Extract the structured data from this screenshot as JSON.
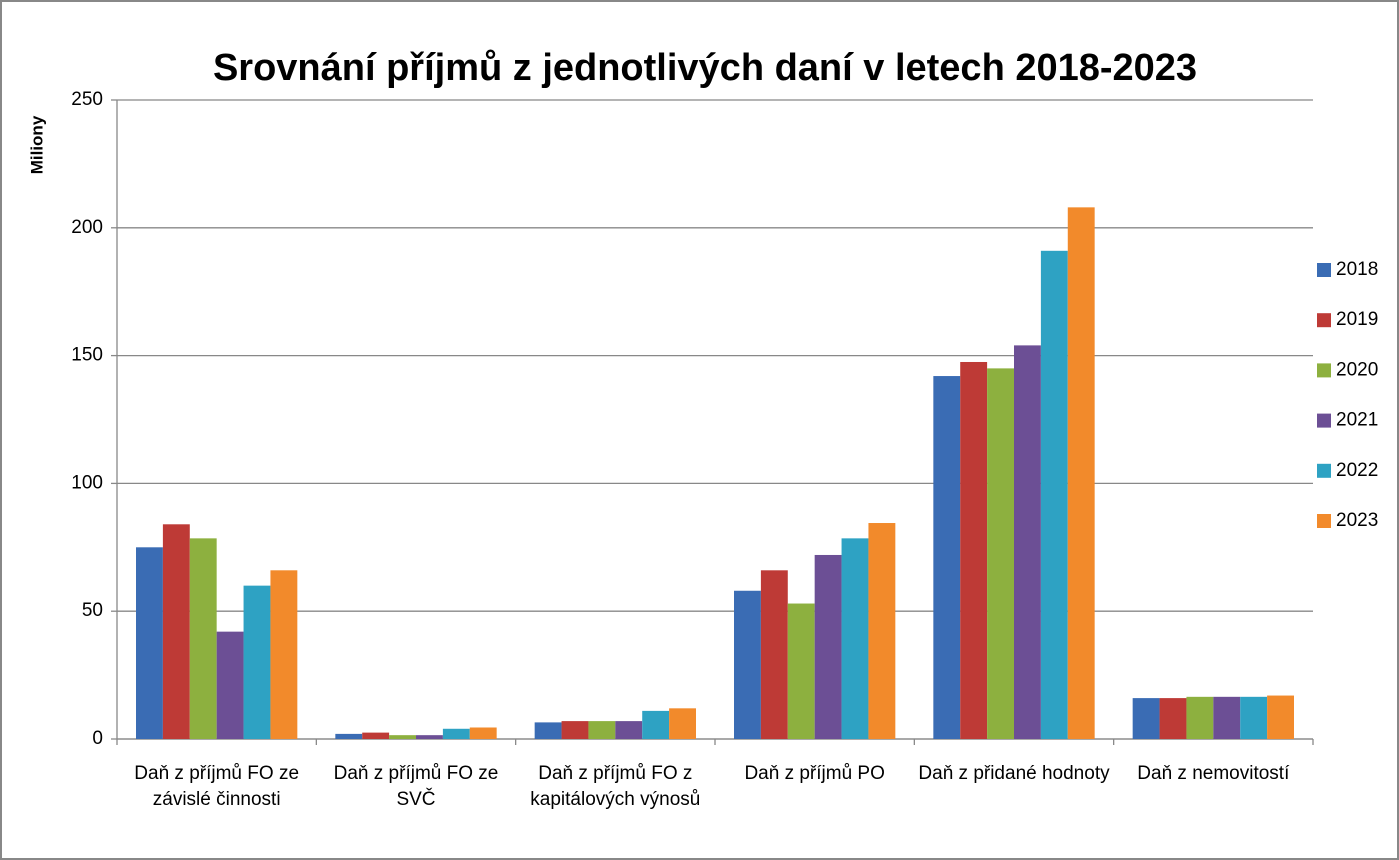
{
  "chart_data": {
    "type": "bar",
    "title": "Srovnání příjmů z jednotlivých daní v letech 2018-2023",
    "y_label": "Miliony",
    "categories": [
      "Daň z příjmů FO ze závislé činnosti",
      "Daň z příjmů FO ze SVČ",
      "Daň z příjmů FO z kapitálových výnosů",
      "Daň z příjmů PO",
      "Daň z přidané hodnoty",
      "Daň z nemovitostí"
    ],
    "series": [
      {
        "name": "2018",
        "color": "#3a6cb4",
        "values": [
          75,
          2,
          6.5,
          58,
          142,
          16
        ]
      },
      {
        "name": "2019",
        "color": "#be3a36",
        "values": [
          84,
          2.5,
          7,
          66,
          147.5,
          16
        ]
      },
      {
        "name": "2020",
        "color": "#8db03f",
        "values": [
          78.5,
          1.5,
          7,
          53,
          145,
          16.5
        ]
      },
      {
        "name": "2021",
        "color": "#6c4f95",
        "values": [
          42,
          1.5,
          7,
          72,
          154,
          16.5
        ]
      },
      {
        "name": "2022",
        "color": "#2ea2c3",
        "values": [
          60,
          4,
          11,
          78.5,
          191,
          16.5
        ]
      },
      {
        "name": "2023",
        "color": "#f28a2b",
        "values": [
          66,
          4.5,
          12,
          84.5,
          208,
          17
        ]
      }
    ],
    "ylim": [
      0,
      250
    ],
    "yticks": [
      0,
      50,
      100,
      150,
      200,
      250
    ],
    "grid": true,
    "legend": "right"
  }
}
